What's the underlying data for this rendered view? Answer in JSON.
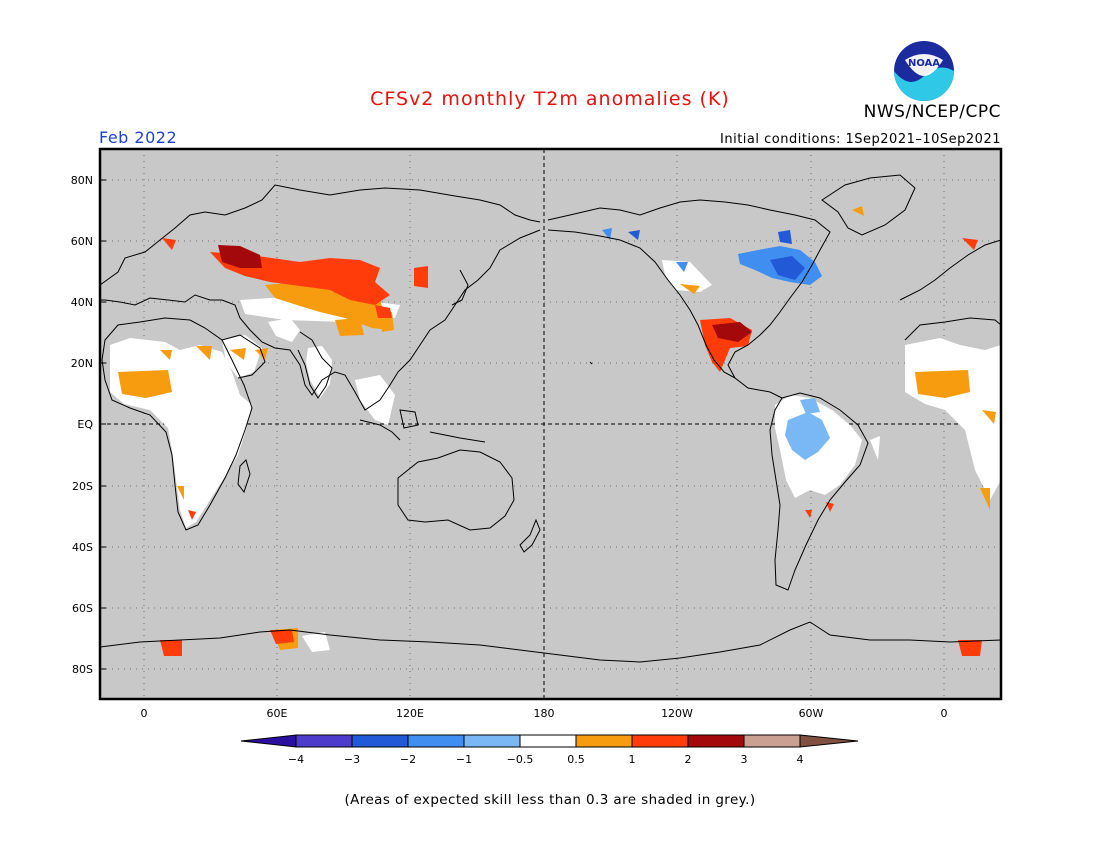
{
  "header": {
    "title": "CFSv2 monthly T2m anomalies (K)",
    "agency": "NWS/NCEP/CPC",
    "valid_month": "Feb 2022",
    "initial_conditions": "Initial conditions: 1Sep2021–10Sep2021",
    "logo_text": "NOAA"
  },
  "axes": {
    "lat_labels": [
      "80N",
      "60N",
      "40N",
      "20N",
      "EQ",
      "20S",
      "40S",
      "60S",
      "80S"
    ],
    "lon_labels": [
      "0",
      "60E",
      "120E",
      "180",
      "120W",
      "60W",
      "0"
    ]
  },
  "colorbar": {
    "tick_labels": [
      "−4",
      "−3",
      "−2",
      "−1",
      "−0.5",
      "0.5",
      "1",
      "2",
      "3",
      "4"
    ],
    "colors": [
      "#2a0fa0",
      "#4d3ccc",
      "#2159d6",
      "#3f8ef0",
      "#7ab8f5",
      "#ffffff",
      "#f79c0f",
      "#ff3c0a",
      "#a3080a",
      "#c9a092",
      "#805040"
    ]
  },
  "footnote": "(Areas of expected skill less than 0.3 are shaded in grey.)",
  "map_colors": {
    "background": "#c8c8c8",
    "coast": "#000000"
  }
}
